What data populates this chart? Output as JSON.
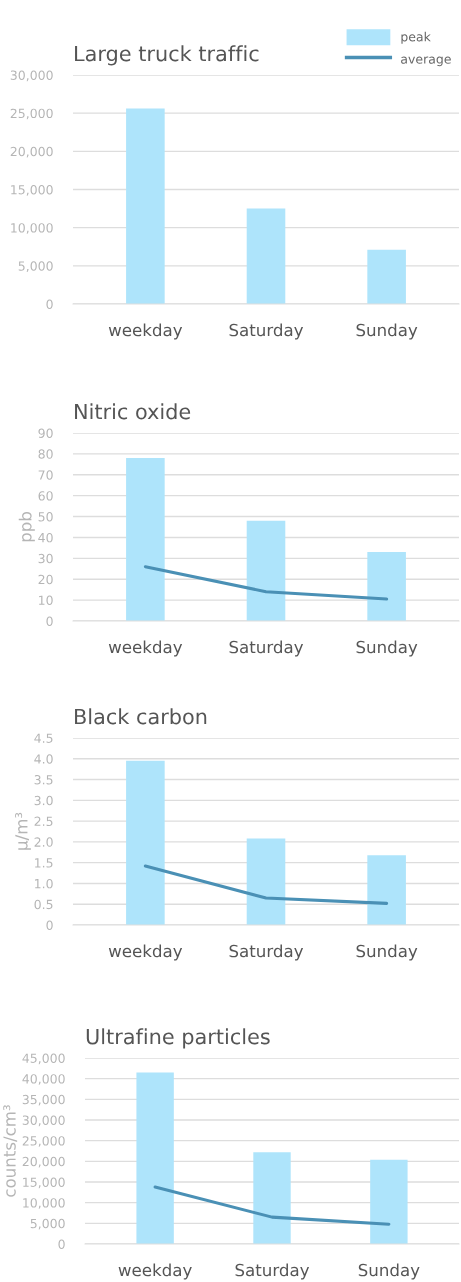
{
  "chart_data": [
    {
      "type": "bar",
      "title": "Large truck traffic",
      "categories": [
        "weekday",
        "Saturday",
        "Sunday"
      ],
      "series": [
        {
          "name": "peak",
          "color": "#aee4fb",
          "values": [
            25600,
            12500,
            7100
          ]
        },
        {
          "name": "average",
          "type": "line",
          "color": "#4a90b5",
          "values": [
            null,
            null,
            null
          ]
        }
      ],
      "ylim": [
        0,
        30000
      ],
      "yticks": [
        0,
        {
          "value": 5000,
          "label": "5,000"
        },
        {
          "value": 10000,
          "label": "10,000"
        },
        {
          "value": 15000,
          "label": "15,000"
        },
        {
          "value": 20000,
          "label": "20,000"
        },
        {
          "value": 25000,
          "label": "25,000"
        },
        {
          "value": 30000,
          "label": "30,000"
        }
      ],
      "grid": "y",
      "legend": "top right"
    },
    {
      "type": "bar",
      "title": "Nitric oxide",
      "ylabel": "ppb",
      "categories": [
        "weekday",
        "Saturday",
        "Sunday"
      ],
      "series": [
        {
          "color": "#aee4fb",
          "values": [
            78,
            48,
            33
          ]
        },
        {
          "type": "line",
          "color": "#4a90b5",
          "values": [
            26,
            14,
            10.5
          ]
        }
      ],
      "ylim": [
        0,
        90
      ],
      "yticks": [
        0,
        10,
        20,
        30,
        40,
        50,
        60,
        70,
        80,
        90
      ],
      "grid": "y"
    },
    {
      "type": "bar",
      "title": "Black carbon",
      "ylabel": "μ/m³",
      "categories": [
        "weekday",
        "Saturday",
        "Sunday"
      ],
      "series": [
        {
          "color": "#aee4fb",
          "values": [
            3.95,
            2.08,
            1.68
          ]
        },
        {
          "type": "line",
          "color": "#4a90b5",
          "values": [
            1.42,
            0.65,
            0.52
          ]
        }
      ],
      "ylim": [
        0,
        4.5
      ],
      "yticks": [
        0,
        0.5,
        {
          "value": 1,
          "label": "1.0"
        },
        1.5,
        {
          "value": 2,
          "label": "2.0"
        },
        2.5,
        {
          "value": 3,
          "label": "3.0"
        },
        3.5,
        {
          "value": 4,
          "label": "4.0"
        },
        4.5
      ],
      "grid": "y"
    },
    {
      "type": "bar",
      "title": "Ultrafine particles",
      "ylabel": "counts/cm³",
      "categories": [
        "weekday",
        "Saturday",
        "Sunday"
      ],
      "series": [
        {
          "color": "#aee4fb",
          "values": [
            41500,
            22200,
            20400
          ]
        },
        {
          "type": "line",
          "color": "#4a90b5",
          "values": [
            13800,
            6500,
            4800
          ]
        }
      ],
      "ylim": [
        0,
        45000
      ],
      "yticks": [
        0,
        {
          "value": 5000,
          "label": "5,000"
        },
        {
          "value": 10000,
          "label": "10,000"
        },
        {
          "value": 15000,
          "label": "15,000"
        },
        {
          "value": 20000,
          "label": "20,000"
        },
        {
          "value": 25000,
          "label": "25,000"
        },
        {
          "value": 30000,
          "label": "30,000"
        },
        {
          "value": 35000,
          "label": "35,000"
        },
        {
          "value": 40000,
          "label": "40,000"
        },
        {
          "value": 45000,
          "label": "45,000"
        }
      ],
      "grid": "y"
    }
  ]
}
